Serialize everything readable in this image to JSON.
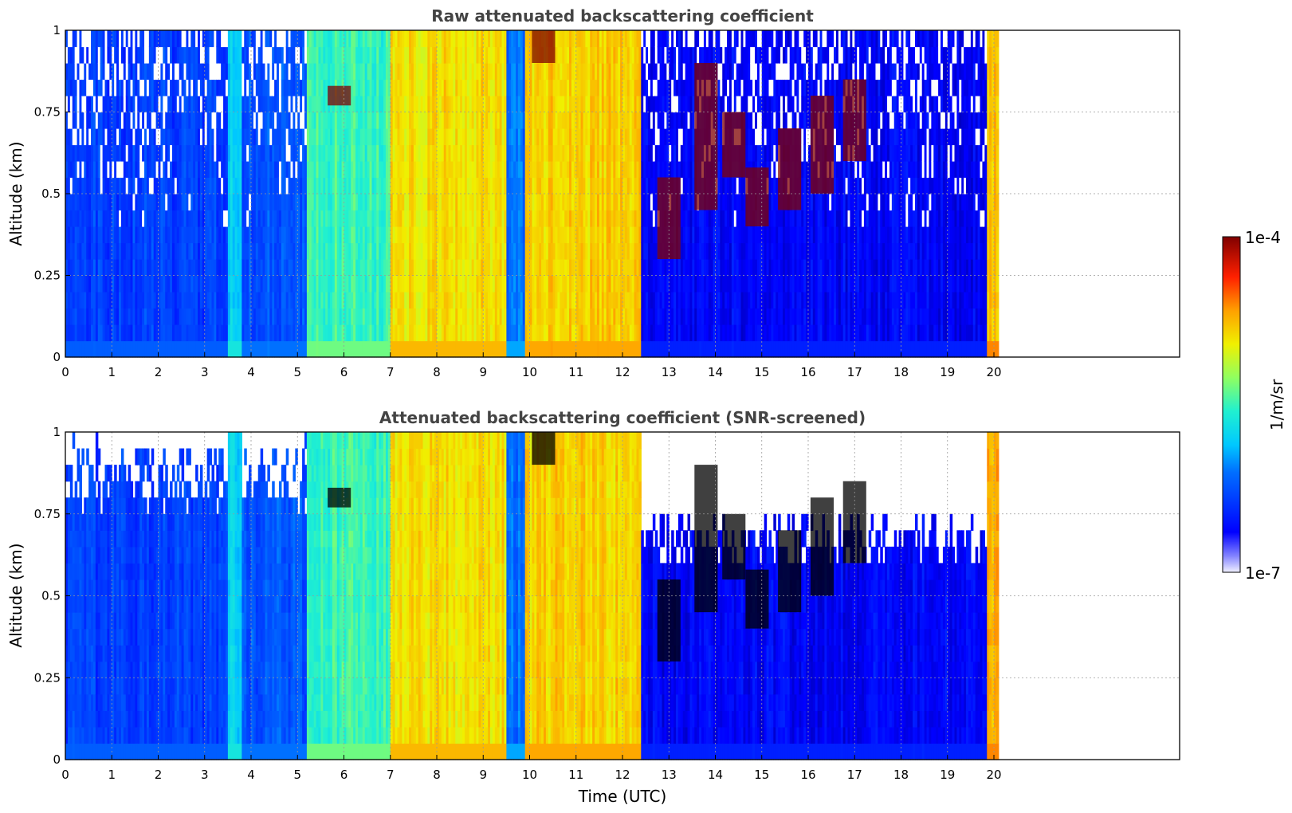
{
  "chart_data": [
    {
      "type": "heatmap",
      "title": "Raw attenuated backscattering coefficient",
      "xlabel": "",
      "ylabel": "Altitude (km)",
      "xlim": [
        0,
        24
      ],
      "ylim": [
        0,
        1
      ],
      "x_ticks": [
        "0",
        "1",
        "2",
        "3",
        "4",
        "5",
        "6",
        "7",
        "8",
        "9",
        "10",
        "11",
        "12",
        "13",
        "14",
        "15",
        "16",
        "17",
        "18",
        "19",
        "20"
      ],
      "y_ticks": [
        "0",
        "0.25",
        "0.5",
        "0.75",
        "1"
      ],
      "grid": true,
      "screened": false,
      "data_end_time": 20.1,
      "time_bands": [
        {
          "t": [
            0.0,
            3.5
          ],
          "level": 0.22
        },
        {
          "t": [
            3.5,
            3.8
          ],
          "level": 0.4
        },
        {
          "t": [
            3.8,
            5.2
          ],
          "level": 0.25
        },
        {
          "t": [
            5.2,
            7.0
          ],
          "level": 0.5
        },
        {
          "t": [
            7.0,
            9.5
          ],
          "level": 0.7
        },
        {
          "t": [
            9.5,
            9.9
          ],
          "level": 0.3
        },
        {
          "t": [
            9.9,
            12.4
          ],
          "level": 0.72
        },
        {
          "t": [
            12.4,
            19.85
          ],
          "level": 0.12
        },
        {
          "t": [
            19.85,
            20.1
          ],
          "level": 0.75
        }
      ],
      "cloud_patches": [
        {
          "t": 13.0,
          "alt": [
            0.3,
            0.55
          ]
        },
        {
          "t": 13.8,
          "alt": [
            0.45,
            0.9
          ]
        },
        {
          "t": 14.4,
          "alt": [
            0.55,
            0.75
          ]
        },
        {
          "t": 14.9,
          "alt": [
            0.4,
            0.58
          ]
        },
        {
          "t": 15.6,
          "alt": [
            0.45,
            0.7
          ]
        },
        {
          "t": 16.3,
          "alt": [
            0.5,
            0.8
          ]
        },
        {
          "t": 17.0,
          "alt": [
            0.6,
            0.85
          ]
        },
        {
          "t": 10.3,
          "alt": [
            0.9,
            1.0
          ]
        },
        {
          "t": 5.9,
          "alt": [
            0.77,
            0.83
          ]
        }
      ]
    },
    {
      "type": "heatmap",
      "title": "Attenuated backscattering coefficient (SNR-screened)",
      "xlabel": "Time (UTC)",
      "ylabel": "Altitude (km)",
      "xlim": [
        0,
        24
      ],
      "ylim": [
        0,
        1
      ],
      "x_ticks": [
        "0",
        "1",
        "2",
        "3",
        "4",
        "5",
        "6",
        "7",
        "8",
        "9",
        "10",
        "11",
        "12",
        "13",
        "14",
        "15",
        "16",
        "17",
        "18",
        "19",
        "20"
      ],
      "y_ticks": [
        "0",
        "0.25",
        "0.5",
        "0.75",
        "1"
      ],
      "grid": true,
      "screened": true,
      "data_end_time": 20.1
    }
  ],
  "colorbar": {
    "label": "1/m/sr",
    "min_label": "1e-7",
    "max_label": "1e-4",
    "colormap": "jet",
    "scale": "log"
  },
  "colors": {
    "low": "#0000ff",
    "high": "#800000",
    "saturated": "#000000"
  }
}
